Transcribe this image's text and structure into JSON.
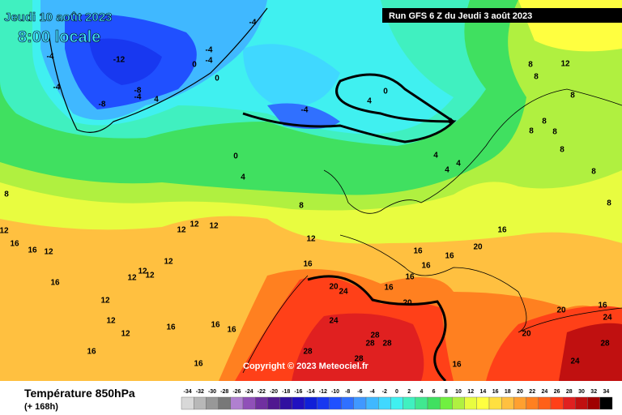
{
  "header": {
    "date": "Jeudi 10 août 2023",
    "time": "8:00 locale",
    "run": "Run GFS 6 Z du Jeudi 3 août 2023"
  },
  "map": {
    "contour_labels": [
      -4,
      -4,
      -12,
      -8,
      -4,
      -8,
      4,
      0,
      -4,
      -4,
      0,
      -4,
      -4,
      4,
      0,
      0,
      4,
      4,
      4,
      0,
      4,
      8,
      8,
      12,
      8,
      8,
      8,
      8,
      8,
      8,
      8,
      8,
      12,
      12,
      12,
      12,
      16,
      20,
      16,
      16,
      16,
      16,
      12,
      12,
      12,
      12,
      16,
      12,
      12,
      12,
      16,
      16,
      16,
      16,
      16,
      20,
      24,
      16,
      16,
      20,
      24,
      28,
      28,
      28,
      28,
      28,
      16,
      20,
      16,
      24,
      20,
      28,
      24,
      8,
      12,
      16,
      12,
      16
    ],
    "copyright": "Copyright © 2023 Meteociel.fr"
  },
  "footer": {
    "title": "Température 850hPa",
    "lead": "(+ 168h)"
  },
  "legend": {
    "values": [
      -34,
      -32,
      -30,
      -28,
      -26,
      -24,
      -22,
      -20,
      -18,
      -16,
      -14,
      -12,
      -10,
      -8,
      -6,
      -4,
      -2,
      0,
      2,
      4,
      6,
      8,
      10,
      12,
      14,
      16,
      18,
      20,
      22,
      24,
      26,
      28,
      30,
      32,
      34
    ],
    "colors": [
      "#d8d8d8",
      "#b8b8b8",
      "#989898",
      "#787878",
      "#b080d0",
      "#9050b8",
      "#7030a0",
      "#501890",
      "#3010a0",
      "#2010c0",
      "#1020d8",
      "#1838f0",
      "#2050ff",
      "#3070ff",
      "#4098ff",
      "#40b8ff",
      "#40d8ff",
      "#40f0f0",
      "#40f0c0",
      "#40e890",
      "#40e060",
      "#70f040",
      "#b0f040",
      "#e8fc40",
      "#ffff40",
      "#ffe040",
      "#ffc040",
      "#ffa030",
      "#ff8020",
      "#ff6018",
      "#ff4018",
      "#e02020",
      "#c01010",
      "#a00000",
      "#000000"
    ]
  }
}
